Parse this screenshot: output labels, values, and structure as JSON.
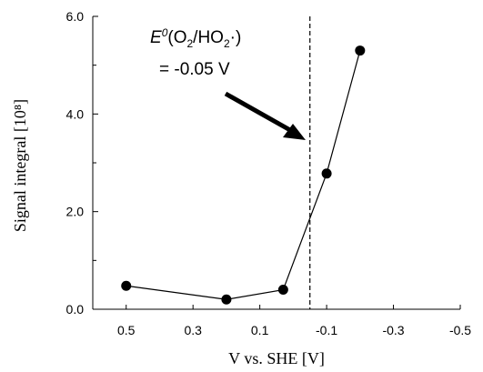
{
  "chart_data": {
    "type": "line",
    "xlabel": "V vs. SHE [V]",
    "ylabel": "Signal integral [10⁸]",
    "xlim": [
      0.6,
      -0.5
    ],
    "ylim": [
      0.0,
      6.0
    ],
    "x_reversed": true,
    "x_ticks": [
      0.5,
      0.3,
      0.1,
      -0.1,
      -0.3,
      -0.5
    ],
    "x_tick_labels": [
      "0.5",
      "0.3",
      "0.1",
      "-0.1",
      "-0.3",
      "-0.5"
    ],
    "y_ticks": [
      0.0,
      2.0,
      4.0,
      6.0
    ],
    "y_tick_labels": [
      "0.0",
      "2.0",
      "4.0",
      "6.0"
    ],
    "grid": false,
    "series": [
      {
        "x": [
          0.5,
          0.2,
          0.03,
          -0.1,
          -0.2
        ],
        "y": [
          0.48,
          0.2,
          0.4,
          2.78,
          5.3
        ],
        "marker": "circle",
        "color": "#000000"
      }
    ],
    "vline": {
      "x": -0.05,
      "style": "dashed"
    },
    "annotation": {
      "E": "E",
      "sup": "0",
      "paren_open": "(O",
      "sub1": "2",
      "mid": "/HO",
      "sub2": "2",
      "dot": "·)",
      "line2": "= -0.05 V"
    }
  }
}
